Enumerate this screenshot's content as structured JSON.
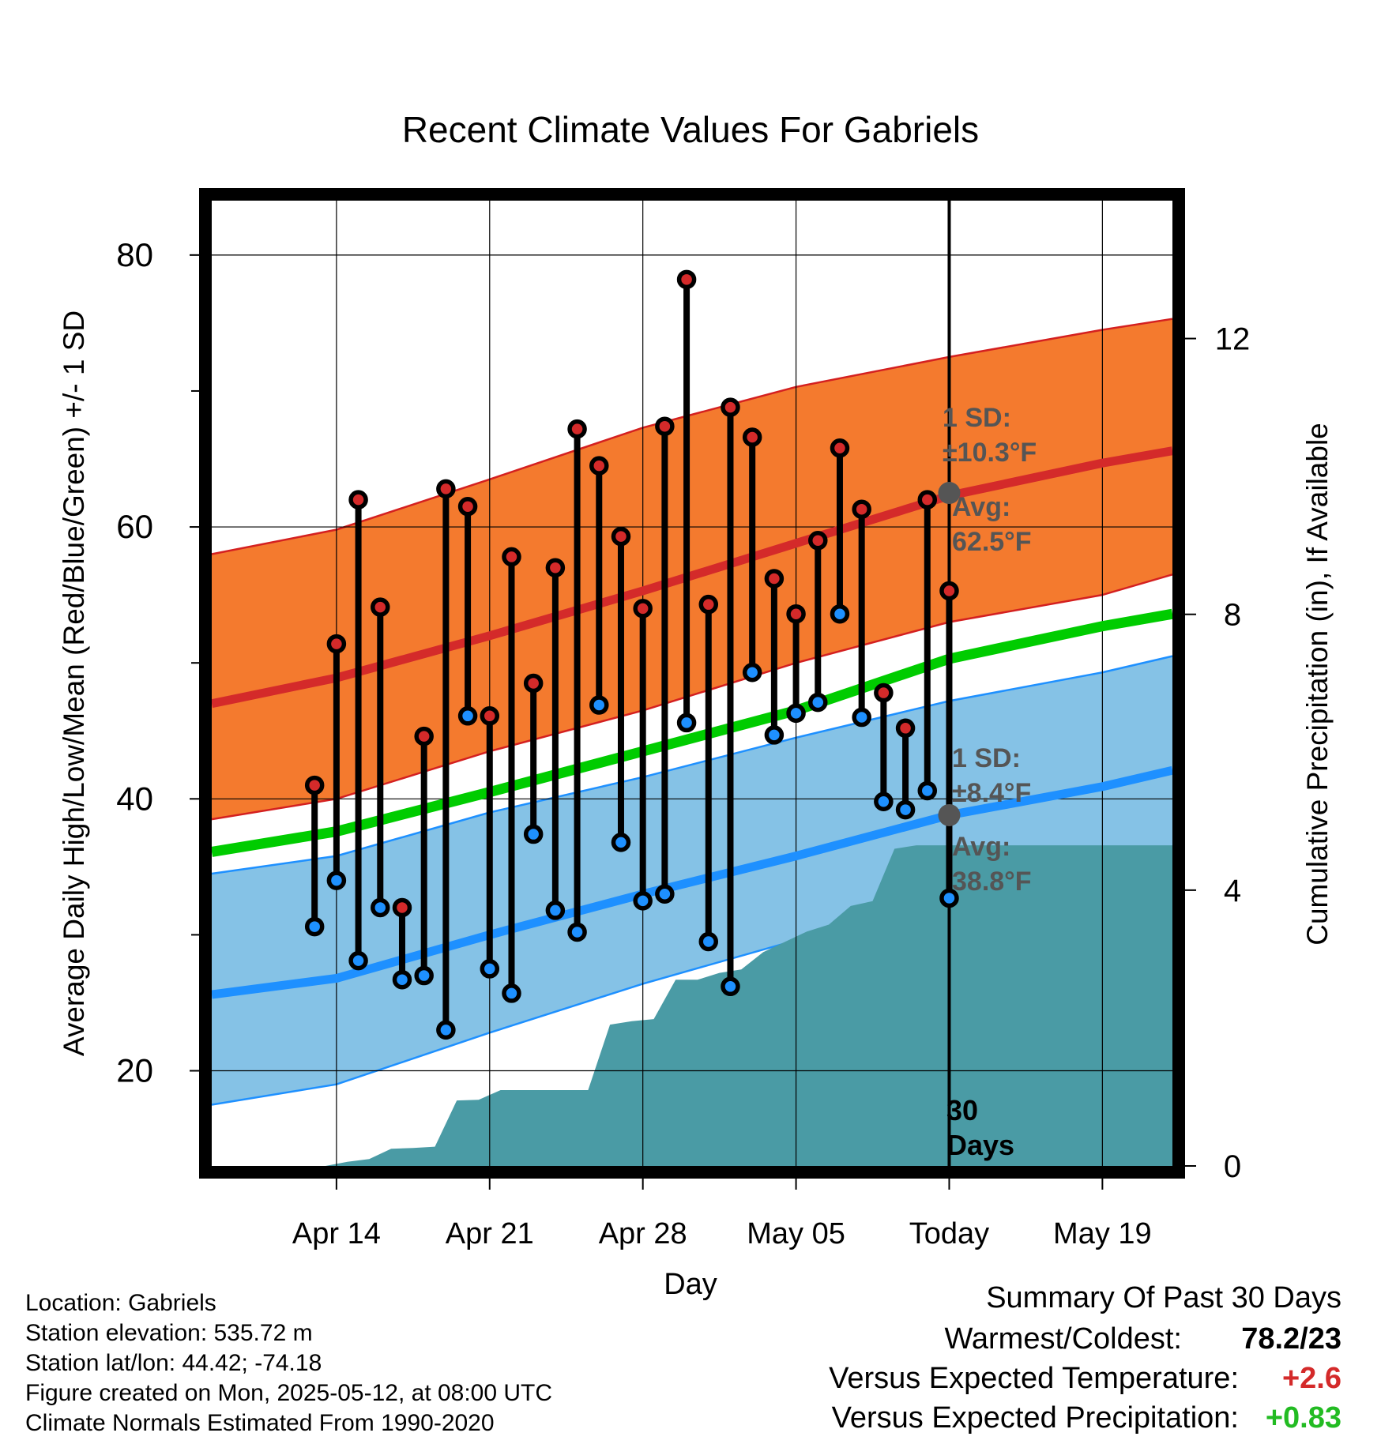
{
  "chart_data": {
    "type": "line",
    "title": "Recent Climate Values For Gabriels",
    "xlabel": "Day",
    "ylabel_left": "Average Daily High/Low/Mean (Red/Blue/Green) +/- 1 SD",
    "ylabel_right": "Cumulative Precipitation (in), If Available",
    "x_range_days": [
      -33.7,
      10.2
    ],
    "ylim_left": [
      13,
      84
    ],
    "ylim_right": [
      0,
      14
    ],
    "x_ticks": [
      {
        "day": -28,
        "label": "Apr 14"
      },
      {
        "day": -21,
        "label": "Apr 21"
      },
      {
        "day": -14,
        "label": "Apr 28"
      },
      {
        "day": -7,
        "label": "May 05"
      },
      {
        "day": 0,
        "label": "Today"
      },
      {
        "day": 7,
        "label": "May 19"
      }
    ],
    "y_ticks_left": [
      20,
      40,
      60,
      80
    ],
    "y_minor_ticks_left": [
      30,
      50,
      70
    ],
    "y_ticks_right": [
      0,
      4,
      8,
      12
    ],
    "grid": true,
    "normals": {
      "day": [
        -33.7,
        -28,
        -21,
        -14,
        -7,
        0,
        7,
        10.2
      ],
      "high_mean": [
        47.0,
        48.9,
        52.0,
        55.3,
        58.8,
        62.3,
        64.7,
        65.6
      ],
      "high_upper": [
        58.0,
        59.8,
        63.5,
        67.3,
        70.3,
        72.5,
        74.5,
        75.3
      ],
      "high_lower": [
        38.5,
        40.0,
        43.5,
        46.5,
        50.0,
        53.0,
        55.0,
        56.5
      ],
      "mean": [
        36.1,
        37.6,
        40.5,
        43.5,
        46.5,
        50.3,
        52.7,
        53.6
      ],
      "low_mean": [
        25.6,
        26.8,
        30.0,
        33.0,
        35.8,
        38.8,
        40.9,
        42.1
      ],
      "low_upper": [
        34.5,
        35.8,
        39.0,
        41.6,
        44.5,
        47.2,
        49.3,
        50.5
      ],
      "low_lower": [
        17.5,
        19.0,
        22.8,
        26.4,
        29.6,
        32.0,
        34.0,
        35.0
      ]
    },
    "observations": [
      {
        "day": -29,
        "high": 41.0,
        "low": 30.6
      },
      {
        "day": -28,
        "high": 51.4,
        "low": 34.0
      },
      {
        "day": -27,
        "high": 62.0,
        "low": 28.1
      },
      {
        "day": -26,
        "high": 54.1,
        "low": 32.0
      },
      {
        "day": -25,
        "high": 32.0,
        "low": 26.7
      },
      {
        "day": -24,
        "high": 44.6,
        "low": 27.0
      },
      {
        "day": -23,
        "high": 62.8,
        "low": 23.0
      },
      {
        "day": -22,
        "high": 61.5,
        "low": 46.1
      },
      {
        "day": -21,
        "high": 46.1,
        "low": 27.5
      },
      {
        "day": -20,
        "high": 57.8,
        "low": 25.7
      },
      {
        "day": -19,
        "high": 48.5,
        "low": 37.4
      },
      {
        "day": -18,
        "high": 57.0,
        "low": 31.8
      },
      {
        "day": -17,
        "high": 67.2,
        "low": 30.2
      },
      {
        "day": -16,
        "high": 64.5,
        "low": 46.9
      },
      {
        "day": -15,
        "high": 59.3,
        "low": 36.8
      },
      {
        "day": -14,
        "high": 54.0,
        "low": 32.5
      },
      {
        "day": -13,
        "high": 67.4,
        "low": 33.0
      },
      {
        "day": -12,
        "high": 78.2,
        "low": 45.6
      },
      {
        "day": -11,
        "high": 54.3,
        "low": 29.5
      },
      {
        "day": -10,
        "high": 68.8,
        "low": 26.2
      },
      {
        "day": -9,
        "high": 66.6,
        "low": 49.3
      },
      {
        "day": -8,
        "high": 56.2,
        "low": 44.7
      },
      {
        "day": -7,
        "high": 53.6,
        "low": 46.3
      },
      {
        "day": -6,
        "high": 59.0,
        "low": 47.1
      },
      {
        "day": -5,
        "high": 65.8,
        "low": 53.6
      },
      {
        "day": -4,
        "high": 61.3,
        "low": 46.0
      },
      {
        "day": -3,
        "high": 47.8,
        "low": 39.8
      },
      {
        "day": -2,
        "high": 45.2,
        "low": 39.2
      },
      {
        "day": -1,
        "high": 62.0,
        "low": 40.6
      },
      {
        "day": 0,
        "high": 55.3,
        "low": 32.7
      }
    ],
    "precip_cumulative": {
      "day": [
        -33.7,
        -30.5,
        -29.5,
        -28.5,
        -27.5,
        -26.5,
        -25.5,
        -24.5,
        -23.5,
        -22.5,
        -21.5,
        -20.5,
        -19.5,
        -18.5,
        -17.5,
        -16.5,
        -15.5,
        -14.5,
        -13.5,
        -12.5,
        -11.5,
        -10.5,
        -9.5,
        -8.5,
        -7.5,
        -6.5,
        -5.5,
        -4.5,
        -3.5,
        -2.5,
        -1.5,
        -0.5,
        0.5,
        10.2
      ],
      "inches": [
        0.0,
        0.0,
        0.0,
        0.0,
        0.06,
        0.1,
        0.25,
        0.26,
        0.28,
        0.95,
        0.96,
        1.1,
        1.1,
        1.1,
        1.1,
        1.1,
        2.05,
        2.1,
        2.13,
        2.7,
        2.7,
        2.8,
        2.85,
        3.1,
        3.25,
        3.4,
        3.5,
        3.77,
        3.84,
        4.6,
        4.65,
        4.65,
        4.65,
        4.65
      ]
    },
    "annotations": {
      "high_sd_label": "1 SD:",
      "high_sd_value": "±10.3°F",
      "high_avg_label": "Avg:",
      "high_avg_value": "62.5°F",
      "low_sd_label": "1 SD:",
      "low_sd_value": "±8.4°F",
      "low_avg_label": "Avg:",
      "low_avg_value": "38.8°F",
      "period_line1": "30",
      "period_line2": "Days"
    },
    "colors": {
      "high_band": "#f47a2e",
      "high_mean": "#d42a2a",
      "high_band_edge": "#d42020",
      "low_band": "#85c2e6",
      "low_mean": "#1e90ff",
      "low_band_edge": "#1e90ff",
      "mean": "#00cc00",
      "precip": "#4a9ba5",
      "high_dot": "#d42a2a",
      "low_dot": "#1e90ff",
      "today_dot": "#555555"
    }
  },
  "info": {
    "location": "Location: Gabriels",
    "elevation": "Station elevation: 535.72 m",
    "latlon": "Station lat/lon: 44.42; -74.18",
    "created": "Figure created on Mon, 2025-05-12, at 08:00 UTC",
    "normals": "Climate Normals Estimated From 1990-2020"
  },
  "summary": {
    "title": "Summary Of Past 30 Days",
    "warm_cold_label": "Warmest/Coldest:",
    "warm_cold_value": "78.2/23",
    "temp_label": "Versus Expected Temperature:",
    "temp_value": "+2.6",
    "temp_color": "#d42a2a",
    "precip_label": "Versus Expected Precipitation:",
    "precip_value": "+0.83",
    "precip_color": "#22bb22"
  }
}
